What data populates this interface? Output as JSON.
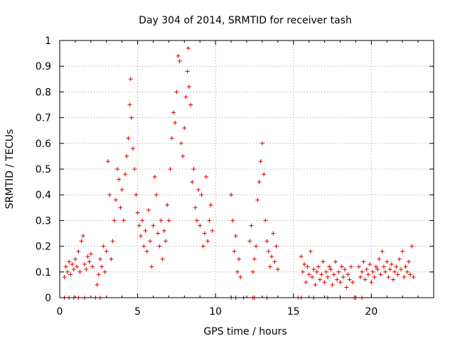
{
  "chart_data": {
    "type": "scatter",
    "title": "Day 304 of 2014, SRMTID for receiver tash",
    "xlabel": "GPS time / hours",
    "ylabel": "SRMTID / TECUs",
    "xlim": [
      0,
      24
    ],
    "ylim": [
      0,
      1
    ],
    "xticks": [
      0,
      5,
      10,
      15,
      20
    ],
    "yticks": [
      0,
      0.1,
      0.2,
      0.3,
      0.4,
      0.5,
      0.6,
      0.7,
      0.8,
      0.9,
      1
    ],
    "xtick_labels": [
      "0",
      "5",
      "10",
      "15",
      "20"
    ],
    "ytick_labels": [
      "0",
      "0.1",
      "0.2",
      "0.3",
      "0.4",
      "0.5",
      "0.6",
      "0.7",
      "0.8",
      "0.9",
      "1"
    ],
    "grid": true,
    "marker": "plus",
    "marker_color": "#e00000",
    "series": [
      {
        "name": "SRMTID",
        "points": [
          [
            0.3,
            0.08
          ],
          [
            0.4,
            0.12
          ],
          [
            0.5,
            0.1
          ],
          [
            0.6,
            0.14
          ],
          [
            0.7,
            0.09
          ],
          [
            0.8,
            0.13
          ],
          [
            0.9,
            0.11
          ],
          [
            1.0,
            0.15
          ],
          [
            1.1,
            0.12
          ],
          [
            1.2,
            0.18
          ],
          [
            1.3,
            0.1
          ],
          [
            1.4,
            0.22
          ],
          [
            1.5,
            0.24
          ],
          [
            1.6,
            0.13
          ],
          [
            1.7,
            0.11
          ],
          [
            1.8,
            0.16
          ],
          [
            1.9,
            0.14
          ],
          [
            2.0,
            0.17
          ],
          [
            2.1,
            0.12
          ],
          [
            2.4,
            0.05
          ],
          [
            2.5,
            0.09
          ],
          [
            2.6,
            0.15
          ],
          [
            2.7,
            0.12
          ],
          [
            2.8,
            0.2
          ],
          [
            2.9,
            0.1
          ],
          [
            3.0,
            0.18
          ],
          [
            3.1,
            0.53
          ],
          [
            3.2,
            0.4
          ],
          [
            3.3,
            0.15
          ],
          [
            3.4,
            0.22
          ],
          [
            3.5,
            0.3
          ],
          [
            3.6,
            0.38
          ],
          [
            3.7,
            0.5
          ],
          [
            3.8,
            0.46
          ],
          [
            3.9,
            0.35
          ],
          [
            4.0,
            0.42
          ],
          [
            4.1,
            0.3
          ],
          [
            4.2,
            0.48
          ],
          [
            4.3,
            0.55
          ],
          [
            4.4,
            0.62
          ],
          [
            4.5,
            0.75
          ],
          [
            4.55,
            0.85
          ],
          [
            4.6,
            0.7
          ],
          [
            4.7,
            0.58
          ],
          [
            4.8,
            0.5
          ],
          [
            4.9,
            0.4
          ],
          [
            5.0,
            0.33
          ],
          [
            5.1,
            0.28
          ],
          [
            5.2,
            0.24
          ],
          [
            5.3,
            0.3
          ],
          [
            5.4,
            0.2
          ],
          [
            5.5,
            0.26
          ],
          [
            5.6,
            0.18
          ],
          [
            5.7,
            0.34
          ],
          [
            5.8,
            0.22
          ],
          [
            5.9,
            0.12
          ],
          [
            6.0,
            0.28
          ],
          [
            6.1,
            0.47
          ],
          [
            6.2,
            0.4
          ],
          [
            6.3,
            0.25
          ],
          [
            6.4,
            0.2
          ],
          [
            6.5,
            0.3
          ],
          [
            6.6,
            0.15
          ],
          [
            6.7,
            0.26
          ],
          [
            6.8,
            0.22
          ],
          [
            6.9,
            0.36
          ],
          [
            7.0,
            0.3
          ],
          [
            7.1,
            0.5
          ],
          [
            7.2,
            0.62
          ],
          [
            7.3,
            0.72
          ],
          [
            7.4,
            0.68
          ],
          [
            7.5,
            0.8
          ],
          [
            7.6,
            0.94
          ],
          [
            7.7,
            0.92
          ],
          [
            7.8,
            0.6
          ],
          [
            7.9,
            0.55
          ],
          [
            8.0,
            0.66
          ],
          [
            8.1,
            0.78
          ],
          [
            8.2,
            0.88
          ],
          [
            8.25,
            0.97
          ],
          [
            8.3,
            0.82
          ],
          [
            8.4,
            0.75
          ],
          [
            8.5,
            0.45
          ],
          [
            8.6,
            0.5
          ],
          [
            8.7,
            0.35
          ],
          [
            8.8,
            0.3
          ],
          [
            8.9,
            0.42
          ],
          [
            9.0,
            0.28
          ],
          [
            9.1,
            0.4
          ],
          [
            9.2,
            0.2
          ],
          [
            9.3,
            0.25
          ],
          [
            9.4,
            0.47
          ],
          [
            9.5,
            0.22
          ],
          [
            9.6,
            0.3
          ],
          [
            9.7,
            0.36
          ],
          [
            9.8,
            0.26
          ],
          [
            11.0,
            0.4
          ],
          [
            11.1,
            0.3
          ],
          [
            11.2,
            0.18
          ],
          [
            11.3,
            0.24
          ],
          [
            11.4,
            0.1
          ],
          [
            11.5,
            0.15
          ],
          [
            11.6,
            0.08
          ],
          [
            12.2,
            0.22
          ],
          [
            12.3,
            0.28
          ],
          [
            12.4,
            0.1
          ],
          [
            12.5,
            0.15
          ],
          [
            12.6,
            0.2
          ],
          [
            12.7,
            0.38
          ],
          [
            12.8,
            0.45
          ],
          [
            12.9,
            0.53
          ],
          [
            13.0,
            0.6
          ],
          [
            13.1,
            0.48
          ],
          [
            13.2,
            0.3
          ],
          [
            13.3,
            0.22
          ],
          [
            13.4,
            0.18
          ],
          [
            13.5,
            0.12
          ],
          [
            13.6,
            0.16
          ],
          [
            13.7,
            0.25
          ],
          [
            13.8,
            0.14
          ],
          [
            13.9,
            0.2
          ],
          [
            14.0,
            0.11
          ],
          [
            15.5,
            0.16
          ],
          [
            15.6,
            0.1
          ],
          [
            15.7,
            0.13
          ],
          [
            15.8,
            0.06
          ],
          [
            15.9,
            0.12
          ],
          [
            16.0,
            0.09
          ],
          [
            16.1,
            0.18
          ],
          [
            16.2,
            0.08
          ],
          [
            16.3,
            0.11
          ],
          [
            16.4,
            0.05
          ],
          [
            16.5,
            0.1
          ],
          [
            16.6,
            0.12
          ],
          [
            16.7,
            0.07
          ],
          [
            16.8,
            0.09
          ],
          [
            16.9,
            0.14
          ],
          [
            17.0,
            0.06
          ],
          [
            17.1,
            0.1
          ],
          [
            17.2,
            0.08
          ],
          [
            17.3,
            0.12
          ],
          [
            17.4,
            0.11
          ],
          [
            17.5,
            0.05
          ],
          [
            17.6,
            0.09
          ],
          [
            17.7,
            0.14
          ],
          [
            17.8,
            0.07
          ],
          [
            17.9,
            0.1
          ],
          [
            18.0,
            0.06
          ],
          [
            18.1,
            0.12
          ],
          [
            18.2,
            0.08
          ],
          [
            18.3,
            0.11
          ],
          [
            18.4,
            0.04
          ],
          [
            18.5,
            0.09
          ],
          [
            18.6,
            0.07
          ],
          [
            18.7,
            0.12
          ],
          [
            18.8,
            0.06
          ],
          [
            19.2,
            0.12
          ],
          [
            19.3,
            0.08
          ],
          [
            19.4,
            0.1
          ],
          [
            19.5,
            0.14
          ],
          [
            19.6,
            0.07
          ],
          [
            19.7,
            0.11
          ],
          [
            19.8,
            0.09
          ],
          [
            19.9,
            0.13
          ],
          [
            20.0,
            0.06
          ],
          [
            20.1,
            0.1
          ],
          [
            20.2,
            0.08
          ],
          [
            20.3,
            0.12
          ],
          [
            20.4,
            0.11
          ],
          [
            20.5,
            0.15
          ],
          [
            20.6,
            0.09
          ],
          [
            20.7,
            0.18
          ],
          [
            20.8,
            0.12
          ],
          [
            20.9,
            0.1
          ],
          [
            21.0,
            0.14
          ],
          [
            21.1,
            0.08
          ],
          [
            21.2,
            0.11
          ],
          [
            21.3,
            0.13
          ],
          [
            21.4,
            0.07
          ],
          [
            21.5,
            0.1
          ],
          [
            21.6,
            0.12
          ],
          [
            21.7,
            0.09
          ],
          [
            21.8,
            0.15
          ],
          [
            21.9,
            0.11
          ],
          [
            22.0,
            0.18
          ],
          [
            22.1,
            0.08
          ],
          [
            22.2,
            0.12
          ],
          [
            22.3,
            0.1
          ],
          [
            22.4,
            0.14
          ],
          [
            22.5,
            0.09
          ],
          [
            22.6,
            0.2
          ],
          [
            22.7,
            0.08
          ],
          [
            0.3,
            0
          ],
          [
            0.6,
            0
          ],
          [
            0.9,
            0
          ],
          [
            1.2,
            0
          ],
          [
            1.6,
            0
          ],
          [
            2.3,
            0
          ],
          [
            2.6,
            0
          ],
          [
            11.0,
            0
          ],
          [
            11.3,
            0
          ],
          [
            11.8,
            0
          ],
          [
            12.4,
            0
          ],
          [
            12.5,
            0
          ],
          [
            13.3,
            0
          ],
          [
            15.3,
            0
          ],
          [
            15.5,
            0
          ],
          [
            16.3,
            0
          ],
          [
            17.2,
            0
          ],
          [
            18.0,
            0
          ],
          [
            18.9,
            0
          ],
          [
            19.0,
            0
          ],
          [
            19.4,
            0
          ]
        ]
      }
    ]
  }
}
